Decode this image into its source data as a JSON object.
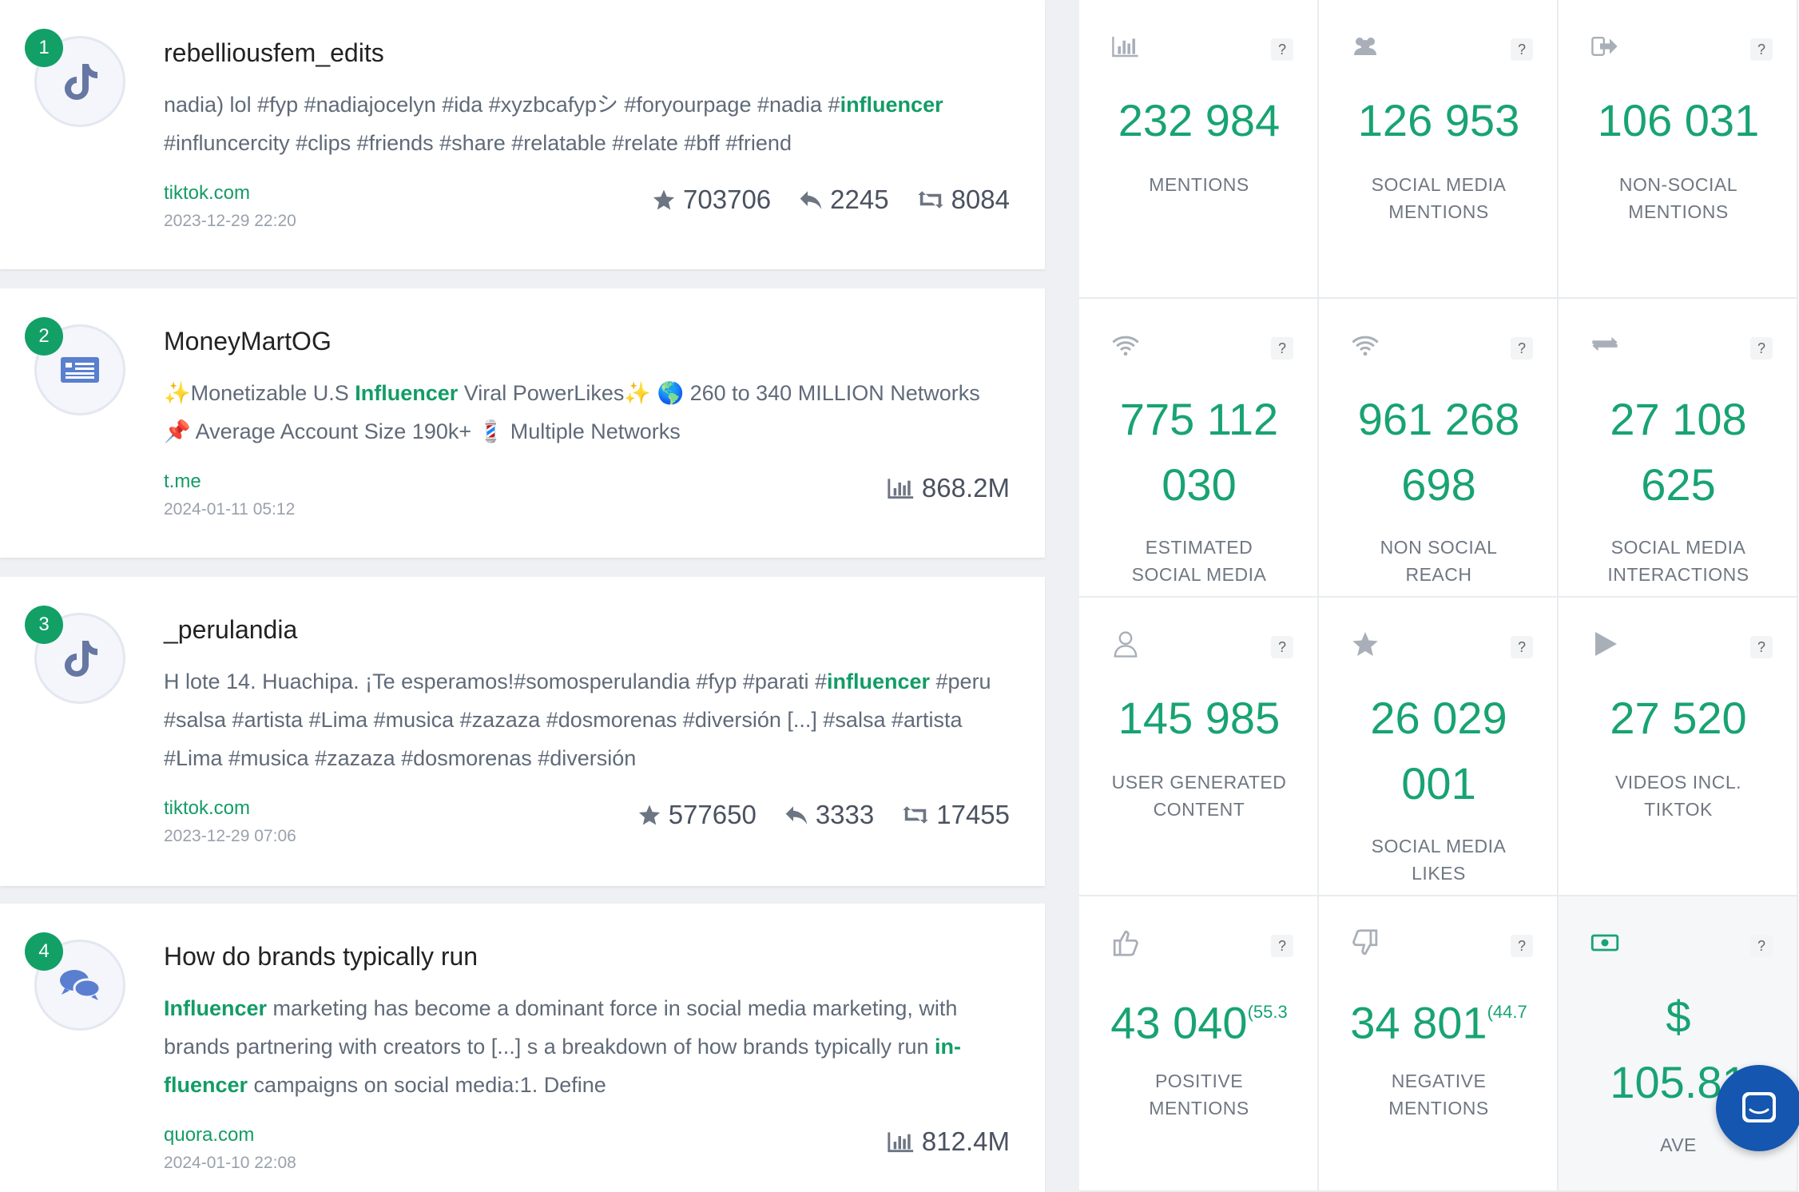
{
  "feed": [
    {
      "rank": "1",
      "icon": "tiktok-icon",
      "title": "rebelliousfem_edits",
      "body_parts": [
        {
          "t": "nadia) lol #fyp #nadiajocelyn #ida #xyzbcafypシ #foryourpage #nadia #"
        },
        {
          "t": "influencer",
          "hl": true
        },
        {
          "t": " #influncercity #clips #friends #share #relatable #relate #bff #friend"
        }
      ],
      "source": "tiktok.com",
      "date": "2023-12-29 22:20",
      "stats": [
        {
          "icon": "star-icon",
          "value": "703706"
        },
        {
          "icon": "reply-icon",
          "value": "2245"
        },
        {
          "icon": "retweet-icon",
          "value": "8084"
        }
      ]
    },
    {
      "rank": "2",
      "icon": "news-icon",
      "title": "MoneyMartOG",
      "body_parts": [
        {
          "t": "✨Monetizable U.S "
        },
        {
          "t": "Influencer",
          "hl": true
        },
        {
          "t": " Viral PowerLikes✨ 🌎 260 to 340 MILLION Networks 📌 Average Account Size 190k+ 💈 Multiple Networks"
        }
      ],
      "source": "t.me",
      "date": "2024-01-11 05:12",
      "stats": [
        {
          "icon": "bar-chart-icon",
          "value": "868.2M"
        }
      ]
    },
    {
      "rank": "3",
      "icon": "tiktok-icon",
      "title": "_perulandia",
      "body_parts": [
        {
          "t": "H lote 14. Huachipa. ¡Te esperamos!#somosperulandia #fyp #parati #"
        },
        {
          "t": "influencer",
          "hl": true
        },
        {
          "t": " #peru #salsa #artista #Lima #musica #zazaza #dosmorenas #diversión [...] #salsa #artista #Lima #musica #zazaza #dosmorenas #diversión"
        }
      ],
      "source": "tiktok.com",
      "date": "2023-12-29 07:06",
      "stats": [
        {
          "icon": "star-icon",
          "value": "577650"
        },
        {
          "icon": "reply-icon",
          "value": "3333"
        },
        {
          "icon": "retweet-icon",
          "value": "17455"
        }
      ]
    },
    {
      "rank": "4",
      "icon": "forum-icon",
      "title": "How do brands typically run",
      "body_parts": [
        {
          "t": "Influencer",
          "hl": true
        },
        {
          "t": " marketing has become a dominant force in social media marketing, with brands partnering with creators to [...] s a breakdown of how brands typically run "
        },
        {
          "t": "in-fluencer",
          "hl": true
        },
        {
          "t": " campaigns on social media:1. Define"
        }
      ],
      "source": "quora.com",
      "date": "2024-01-10 22:08",
      "stats": [
        {
          "icon": "bar-chart-icon",
          "value": "812.4M"
        }
      ]
    }
  ],
  "metrics": [
    {
      "icon": "bar-chart-icon",
      "value_lines": [
        "232 984"
      ],
      "label_lines": [
        "MENTIONS"
      ]
    },
    {
      "icon": "users-icon",
      "value_lines": [
        "126 953"
      ],
      "label_lines": [
        "SOCIAL MEDIA",
        "MENTIONS"
      ]
    },
    {
      "icon": "sign-out-icon",
      "value_lines": [
        "106 031"
      ],
      "label_lines": [
        "NON-SOCIAL",
        "MENTIONS"
      ]
    },
    {
      "icon": "wifi-icon",
      "value_lines": [
        "775 112",
        "030"
      ],
      "label_lines": [
        "ESTIMATED",
        "SOCIAL MEDIA"
      ]
    },
    {
      "icon": "wifi-icon",
      "value_lines": [
        "961 268",
        "698"
      ],
      "label_lines": [
        "NON SOCIAL",
        "REACH"
      ]
    },
    {
      "icon": "exchange-icon",
      "value_lines": [
        "27 108",
        "625"
      ],
      "label_lines": [
        "SOCIAL MEDIA",
        "INTERACTIONS"
      ]
    },
    {
      "icon": "user-icon",
      "value_lines": [
        "145 985"
      ],
      "label_lines": [
        "USER GENERATED",
        "CONTENT"
      ]
    },
    {
      "icon": "star-icon",
      "value_lines": [
        "26 029",
        "001"
      ],
      "label_lines": [
        "SOCIAL MEDIA",
        "LIKES"
      ]
    },
    {
      "icon": "play-icon",
      "value_lines": [
        "27 520"
      ],
      "label_lines": [
        "VIDEOS INCL.",
        "TIKTOK"
      ]
    },
    {
      "icon": "thumbs-up-icon",
      "value_lines": [
        "43 040"
      ],
      "pct": "(55.3",
      "label_lines": [
        "POSITIVE",
        "MENTIONS"
      ]
    },
    {
      "icon": "thumbs-down-icon",
      "value_lines": [
        "34 801"
      ],
      "pct": "(44.7",
      "label_lines": [
        "NEGATIVE",
        "MENTIONS"
      ]
    },
    {
      "icon": "money-icon",
      "value_lines": [
        "$",
        "105.81"
      ],
      "label_lines": [
        "AVE"
      ]
    }
  ],
  "help_label": "?",
  "colors": {
    "accent": "#18a372",
    "chat": "#1456b0"
  }
}
